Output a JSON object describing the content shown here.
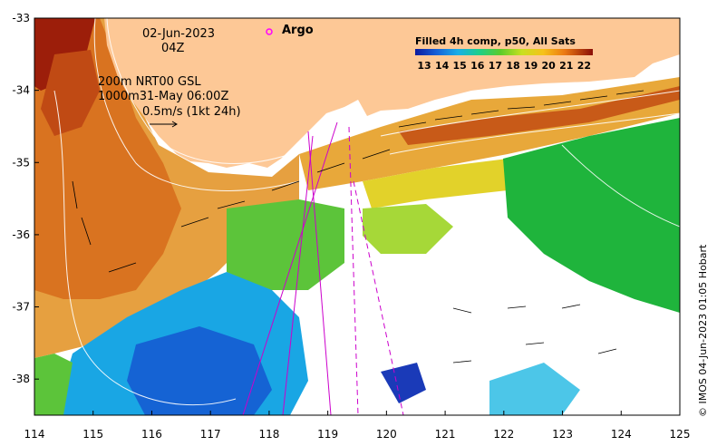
{
  "map": {
    "date": "02-Jun-2023",
    "hour": "04Z",
    "contour_info_1": "200m  NRT00 GSL",
    "contour_info_2": "1000m31-May 06:00Z",
    "vector_scale_label": "0.5m/s (1kt 24h)",
    "argo_label": "Argo",
    "colorbar_title": "Filled 4h comp, p50, All Sats",
    "colorbar_ticks": [
      "13",
      "14",
      "15",
      "16",
      "17",
      "18",
      "19",
      "20",
      "21",
      "22"
    ],
    "credit": "© IMOS 04-Jun-2023 01:05 Hobart",
    "lon_ticks": [
      "114",
      "115",
      "116",
      "117",
      "118",
      "119",
      "120",
      "121",
      "122",
      "123",
      "124",
      "125"
    ],
    "lat_ticks": [
      "-33",
      "-34",
      "-35",
      "-36",
      "-37",
      "-38"
    ],
    "lon_range": [
      114,
      125
    ],
    "lat_range": [
      -38.5,
      -33
    ],
    "colors": {
      "land": "#fdc896",
      "argo_marker": "#ff00ff",
      "track": "#cc00cc"
    }
  }
}
